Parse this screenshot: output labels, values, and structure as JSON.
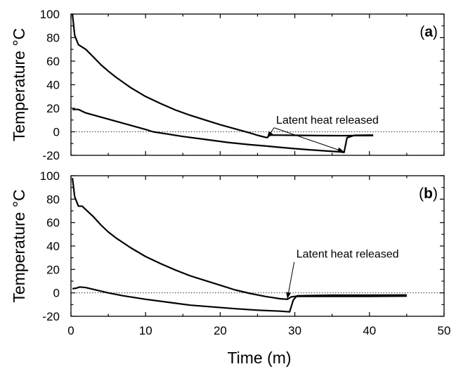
{
  "chart_data": {
    "x_axis": {
      "label": "Time (m)",
      "xlim": [
        0,
        50
      ],
      "ticks": [
        0,
        10,
        20,
        30,
        40,
        50
      ]
    },
    "panels": [
      {
        "panel_label_prefix": "(",
        "panel_label_bold": "a",
        "panel_label_suffix": ")",
        "type": "line",
        "ylabel": "Temperature °C",
        "ylim": [
          -20,
          100
        ],
        "yticks": [
          -20,
          0,
          20,
          40,
          60,
          80,
          100
        ],
        "reference_line": 0,
        "annotation": {
          "text": "Latent heat released",
          "at": [
            27.5,
            7
          ]
        },
        "arrows": [
          [
            26.3,
            -5
          ],
          [
            36.6,
            -17
          ]
        ],
        "series": [
          {
            "x": [
              0.2,
              0.5,
              1,
              1.5,
              2,
              3,
              4,
              5,
              6,
              7,
              8,
              10,
              12,
              14,
              16,
              18,
              20,
              22,
              24,
              25,
              26.3,
              26.6,
              27,
              30,
              33,
              36,
              37,
              38,
              40.5
            ],
            "y": [
              100,
              82,
              74,
              72,
              70,
              63.5,
              57,
              51.5,
              46.5,
              42,
              37.5,
              30,
              24,
              18.5,
              14,
              10,
              6,
              2.5,
              -1,
              -3,
              -5,
              -3,
              -2.8,
              -3,
              -3.2,
              -3.3,
              -3.3,
              -3.2,
              -3.2
            ]
          },
          {
            "x": [
              0.2,
              1,
              2,
              4,
              6,
              8,
              10,
              11,
              13,
              15,
              18,
              21,
              24,
              26,
              28,
              30,
              32,
              34,
              36,
              36.6,
              37,
              38,
              40.5
            ],
            "y": [
              19,
              19,
              16,
              12.5,
              9,
              5.5,
              2,
              0,
              -2,
              -4,
              -6.5,
              -9,
              -11,
              -12,
              -13.2,
              -14.3,
              -15.3,
              -16.2,
              -17,
              -17.5,
              -5,
              -3,
              -2.8
            ]
          }
        ]
      },
      {
        "panel_label_prefix": "(",
        "panel_label_bold": "b",
        "panel_label_suffix": ")",
        "type": "line",
        "ylabel": "Temperature °C",
        "ylim": [
          -20,
          100
        ],
        "yticks": [
          -20,
          0,
          20,
          40,
          60,
          80,
          100
        ],
        "reference_line": 0,
        "annotation": {
          "text": "Latent heat released",
          "at": [
            30.2,
            30
          ]
        },
        "arrows": [
          [
            29,
            -5
          ]
        ],
        "series": [
          {
            "x": [
              0.2,
              0.5,
              1,
              1.5,
              2,
              3,
              4,
              5,
              6,
              8,
              10,
              12,
              14,
              16,
              18,
              20,
              22,
              24,
              26,
              28,
              29,
              29.5,
              30,
              35,
              40,
              45
            ],
            "y": [
              98,
              82,
              74,
              74,
              71,
              65,
              58,
              52,
              47,
              38.5,
              31,
              25,
              19.5,
              14.5,
              10.5,
              6.5,
              2.5,
              -0.5,
              -3,
              -5,
              -5.5,
              -3.5,
              -3,
              -3,
              -3,
              -2.8
            ]
          },
          {
            "x": [
              0.2,
              0.7,
              1.2,
              2,
              3,
              5,
              7,
              10,
              13,
              16,
              19,
              22,
              25,
              28,
              29.3,
              29.8,
              30.3,
              35,
              40,
              45
            ],
            "y": [
              3.5,
              4,
              5,
              4.5,
              3,
              0,
              -2.5,
              -5.5,
              -8,
              -10.5,
              -12,
              -13.5,
              -14.8,
              -15.6,
              -16.2,
              -6,
              -2.5,
              -2,
              -2,
              -1.8
            ]
          }
        ]
      }
    ]
  }
}
